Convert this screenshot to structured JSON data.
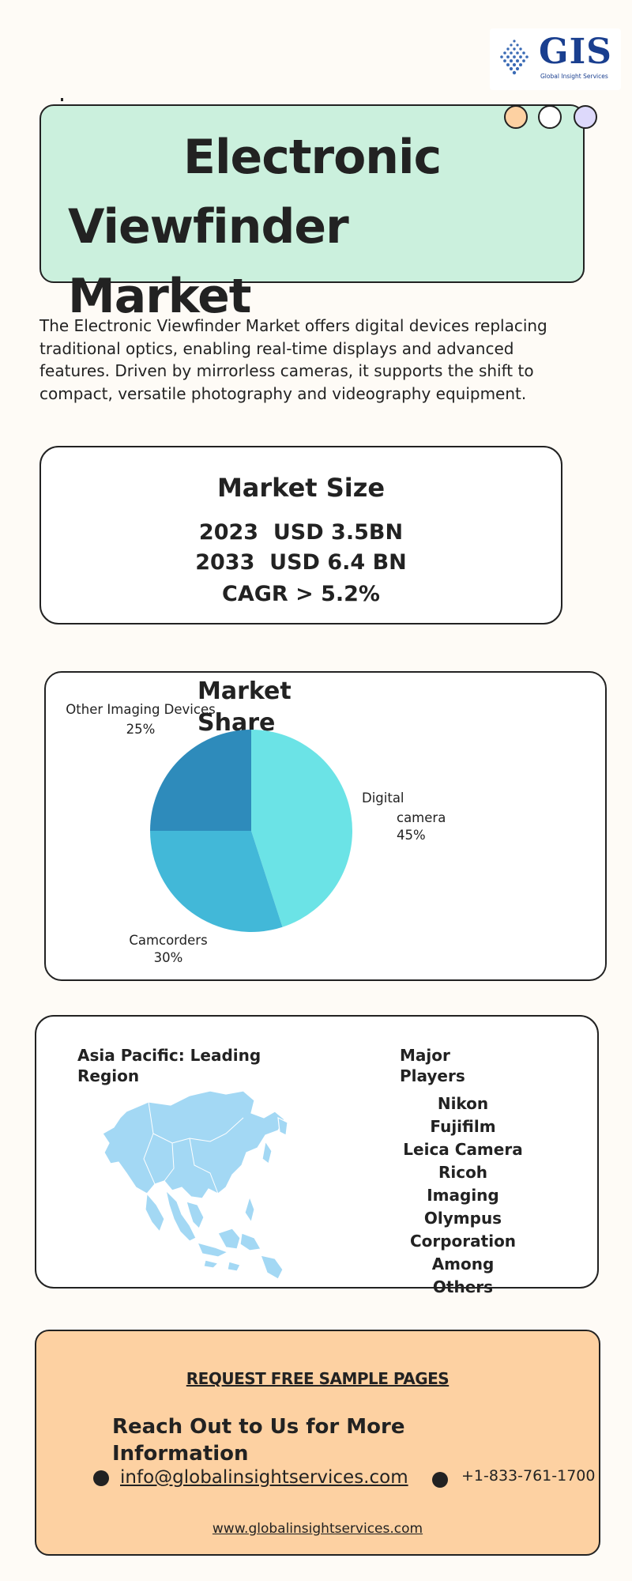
{
  "logo": {
    "word": "GIS",
    "tagline": "Global Insight Services",
    "brand_color": "#1a3f8f",
    "icon": "gis-dots-logo-icon"
  },
  "title": {
    "line1": "Electronic",
    "line2": "Viewfinder",
    "line3": "Market",
    "box_color": "#cbf0dd",
    "dot_colors": [
      "#fdd1a2",
      "#ffffff",
      "#ddd9fb"
    ]
  },
  "intro": "The Electronic Viewfinder Market offers digital devices replacing traditional optics, enabling real-time displays and advanced features. Driven by mirrorless cameras, it supports the shift to compact, versatile photography and videography equipment.",
  "market_size": {
    "heading": "Market Size",
    "line_2023": "2023  USD 3.5BN",
    "line_2033": "2033  USD 6.4 BN",
    "cagr": "CAGR > 5.2%"
  },
  "market_share": {
    "title": "Market Share",
    "labels": {
      "other_name": "Other Imaging Devices",
      "other_pct": "25%",
      "digital_line1": "Digital",
      "digital_line2": "camera",
      "digital_pct": "45%",
      "camcorders_name": "Camcorders",
      "camcorders_pct": "30%"
    }
  },
  "chart_data": {
    "type": "pie",
    "title": "Market Share",
    "categories": [
      "Digital camera",
      "Camcorders",
      "Other Imaging Devices"
    ],
    "values": [
      45,
      30,
      25
    ],
    "colors": [
      "#6be3e6",
      "#42b8d8",
      "#2e8bbb"
    ]
  },
  "region": {
    "title": "Asia Pacific: Leading Region",
    "map_icon": "asia-pacific-map-icon",
    "map_color": "#a3d8f4"
  },
  "players": {
    "title": "Major Players",
    "items": [
      "Nikon",
      "Fujifilm",
      "Leica Camera",
      "Ricoh",
      "Imaging",
      "Olympus",
      "Corporation",
      "Among",
      "Others"
    ]
  },
  "contact": {
    "request": "REQUEST FREE SAMPLE PAGES",
    "reach": "Reach Out to Us for More Information",
    "email": "info@globalinsightservices.com",
    "phone": "+1-833-761-1700",
    "website": "www.globalinsightservices.com",
    "box_color": "#fdd1a2"
  }
}
